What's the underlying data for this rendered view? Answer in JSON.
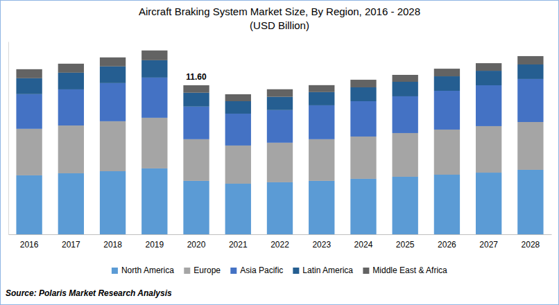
{
  "chart_data": {
    "type": "bar",
    "stacked": true,
    "title": "Aircraft Braking System Market Size, By Region, 2016 - 2028",
    "subtitle": "(USD Billion)",
    "source": "Source: Polaris Market Research Analysis",
    "categories": [
      "2016",
      "2017",
      "2018",
      "2019",
      "2020",
      "2021",
      "2022",
      "2023",
      "2024",
      "2025",
      "2026",
      "2027",
      "2028"
    ],
    "series": [
      {
        "name": "North America",
        "color": "#5b9bd5",
        "values": [
          4.59,
          4.75,
          4.91,
          5.13,
          4.16,
          3.94,
          4.05,
          4.16,
          4.32,
          4.48,
          4.64,
          4.8,
          5.02
        ]
      },
      {
        "name": "Europe",
        "color": "#a5a5a5",
        "values": [
          3.62,
          3.72,
          3.89,
          3.94,
          3.24,
          2.97,
          3.08,
          3.24,
          3.29,
          3.4,
          3.51,
          3.62,
          3.72
        ]
      },
      {
        "name": "Asia Pacific",
        "color": "#4472c4",
        "values": [
          2.7,
          2.81,
          2.97,
          3.13,
          2.54,
          2.48,
          2.54,
          2.64,
          2.75,
          2.86,
          3.02,
          3.18,
          3.35
        ]
      },
      {
        "name": "Latin America",
        "color": "#255e91",
        "values": [
          1.24,
          1.3,
          1.3,
          1.35,
          1.08,
          0.97,
          1.03,
          1.03,
          1.08,
          1.13,
          1.13,
          1.13,
          1.13
        ]
      },
      {
        "name": "Middle East & Africa",
        "color": "#636363",
        "values": [
          0.7,
          0.7,
          0.7,
          0.76,
          0.58,
          0.54,
          0.59,
          0.54,
          0.59,
          0.54,
          0.59,
          0.59,
          0.65
        ]
      }
    ],
    "annotations": [
      {
        "x": "2020",
        "value": 11.6,
        "label": "11.60"
      }
    ],
    "ylim": [
      0,
      15
    ],
    "yticks": [],
    "tick_labels": "x",
    "grid": false,
    "legend": "bottom"
  }
}
